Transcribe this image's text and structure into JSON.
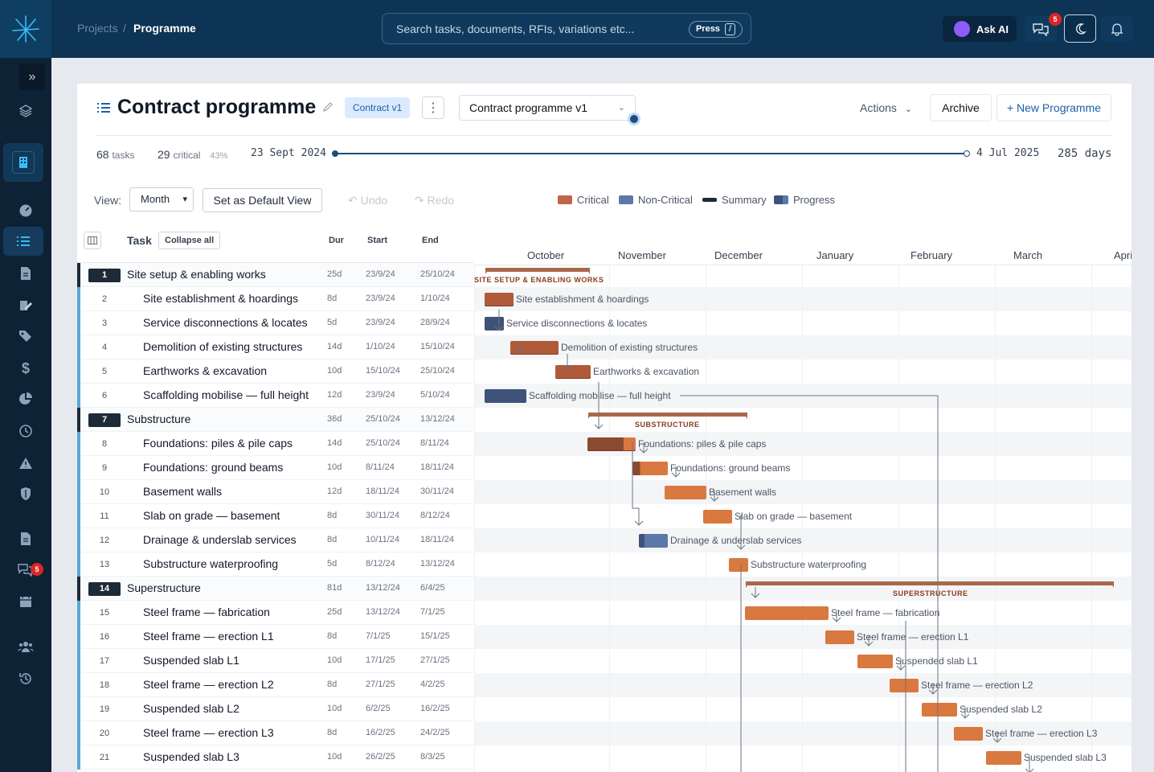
{
  "breadcrumb": {
    "parent": "Projects",
    "separator": "/",
    "current": "Programme"
  },
  "search": {
    "placeholder": "Search tasks, documents, RFIs, variations etc...",
    "press_label": "Press",
    "key": "/"
  },
  "topbar": {
    "ask_ai": "Ask AI",
    "chat_badge": "5"
  },
  "sidebar": {
    "chat_badge": "5",
    "icons": [
      "expand-icon",
      "layers-icon",
      "building-icon",
      "dashboard-icon",
      "programme-icon",
      "document-icon",
      "edit-icon",
      "tags-icon",
      "dollar-icon",
      "pie-chart-icon",
      "clock-icon",
      "warning-icon",
      "shield-icon",
      "file-icon",
      "chat-icon",
      "calendar-icon",
      "team-icon",
      "history-icon"
    ]
  },
  "header": {
    "title": "Contract programme",
    "version_badge": "Contract v1",
    "programme_select": "Contract programme v1",
    "actions": "Actions",
    "archive": "Archive",
    "new_programme": "+ New Programme"
  },
  "stats": {
    "tasks_count": "68",
    "tasks_label": "tasks",
    "critical_count": "29",
    "critical_label": "critical",
    "critical_pct": "43%",
    "start_date": "23 Sept 2024",
    "end_date": "4 Jul 2025",
    "duration": "285 days"
  },
  "toolbar": {
    "view_label": "View:",
    "view_value": "Month",
    "set_default": "Set as Default View",
    "undo": "Undo",
    "redo": "Redo"
  },
  "legend": [
    {
      "label": "Critical",
      "color": "#c0654a"
    },
    {
      "label": "Non-Critical",
      "color": "#5b78a8"
    },
    {
      "label": "Summary",
      "color": "#1f2a37"
    },
    {
      "label": "Progress",
      "color": "#3f5279"
    }
  ],
  "table": {
    "headers": {
      "task": "Task",
      "collapse": "Collapse all",
      "dur": "Dur",
      "start": "Start",
      "end": "End"
    },
    "rows": [
      {
        "num": "1",
        "name": "Site setup & enabling works",
        "dur": "25d",
        "start": "23/9/24",
        "end": "25/10/24",
        "summary": true
      },
      {
        "num": "2",
        "name": "Site establishment & hoardings",
        "dur": "8d",
        "start": "23/9/24",
        "end": "1/10/24"
      },
      {
        "num": "3",
        "name": "Service disconnections & locates",
        "dur": "5d",
        "start": "23/9/24",
        "end": "28/9/24"
      },
      {
        "num": "4",
        "name": "Demolition of existing structures",
        "dur": "14d",
        "start": "1/10/24",
        "end": "15/10/24"
      },
      {
        "num": "5",
        "name": "Earthworks & excavation",
        "dur": "10d",
        "start": "15/10/24",
        "end": "25/10/24"
      },
      {
        "num": "6",
        "name": "Scaffolding mobilise — full height",
        "dur": "12d",
        "start": "23/9/24",
        "end": "5/10/24"
      },
      {
        "num": "7",
        "name": "Substructure",
        "dur": "36d",
        "start": "25/10/24",
        "end": "13/12/24",
        "summary": true
      },
      {
        "num": "8",
        "name": "Foundations: piles & pile caps",
        "dur": "14d",
        "start": "25/10/24",
        "end": "8/11/24"
      },
      {
        "num": "9",
        "name": "Foundations: ground beams",
        "dur": "10d",
        "start": "8/11/24",
        "end": "18/11/24"
      },
      {
        "num": "10",
        "name": "Basement walls",
        "dur": "12d",
        "start": "18/11/24",
        "end": "30/11/24"
      },
      {
        "num": "11",
        "name": "Slab on grade — basement",
        "dur": "8d",
        "start": "30/11/24",
        "end": "8/12/24"
      },
      {
        "num": "12",
        "name": "Drainage & underslab services",
        "dur": "8d",
        "start": "10/11/24",
        "end": "18/11/24"
      },
      {
        "num": "13",
        "name": "Substructure waterproofing",
        "dur": "5d",
        "start": "8/12/24",
        "end": "13/12/24"
      },
      {
        "num": "14",
        "name": "Superstructure",
        "dur": "81d",
        "start": "13/12/24",
        "end": "6/4/25",
        "summary": true
      },
      {
        "num": "15",
        "name": "Steel frame — fabrication",
        "dur": "25d",
        "start": "13/12/24",
        "end": "7/1/25"
      },
      {
        "num": "16",
        "name": "Steel frame — erection L1",
        "dur": "8d",
        "start": "7/1/25",
        "end": "15/1/25"
      },
      {
        "num": "17",
        "name": "Suspended slab L1",
        "dur": "10d",
        "start": "17/1/25",
        "end": "27/1/25"
      },
      {
        "num": "18",
        "name": "Steel frame — erection L2",
        "dur": "8d",
        "start": "27/1/25",
        "end": "4/2/25"
      },
      {
        "num": "19",
        "name": "Suspended slab L2",
        "dur": "10d",
        "start": "6/2/25",
        "end": "16/2/25"
      },
      {
        "num": "20",
        "name": "Steel frame — erection L3",
        "dur": "8d",
        "start": "16/2/25",
        "end": "24/2/25"
      },
      {
        "num": "21",
        "name": "Suspended slab L3",
        "dur": "10d",
        "start": "26/2/25",
        "end": "8/3/25"
      }
    ]
  },
  "gantt": {
    "months": [
      "October",
      "November",
      "December",
      "January",
      "February",
      "March",
      "Apri"
    ],
    "summary_labels": {
      "s1": "SITE SETUP & ENABLING WORKS",
      "s7": "SUBSTRUCTURE",
      "s14": "SUPERSTRUCTURE"
    },
    "labels": {
      "r2": "Site establishment & hoardings",
      "r3": "Service disconnections & locates",
      "r4": "Demolition of existing structures",
      "r5": "Earthworks & excavation",
      "r6": "Scaffolding mobilise — full height",
      "r8": "Foundations: piles & pile caps",
      "r9": "Foundations: ground beams",
      "r10": "Basement walls",
      "r11": "Slab on grade — basement",
      "r12": "Drainage & underslab services",
      "r13": "Substructure waterproofing",
      "r15": "Steel frame — fabrication",
      "r16": "Steel frame — erection L1",
      "r17": "Suspended slab L1",
      "r18": "Steel frame — erection L2",
      "r19": "Suspended slab L2",
      "r20": "Steel frame — erection L3",
      "r21": "Suspended slab L3"
    }
  }
}
